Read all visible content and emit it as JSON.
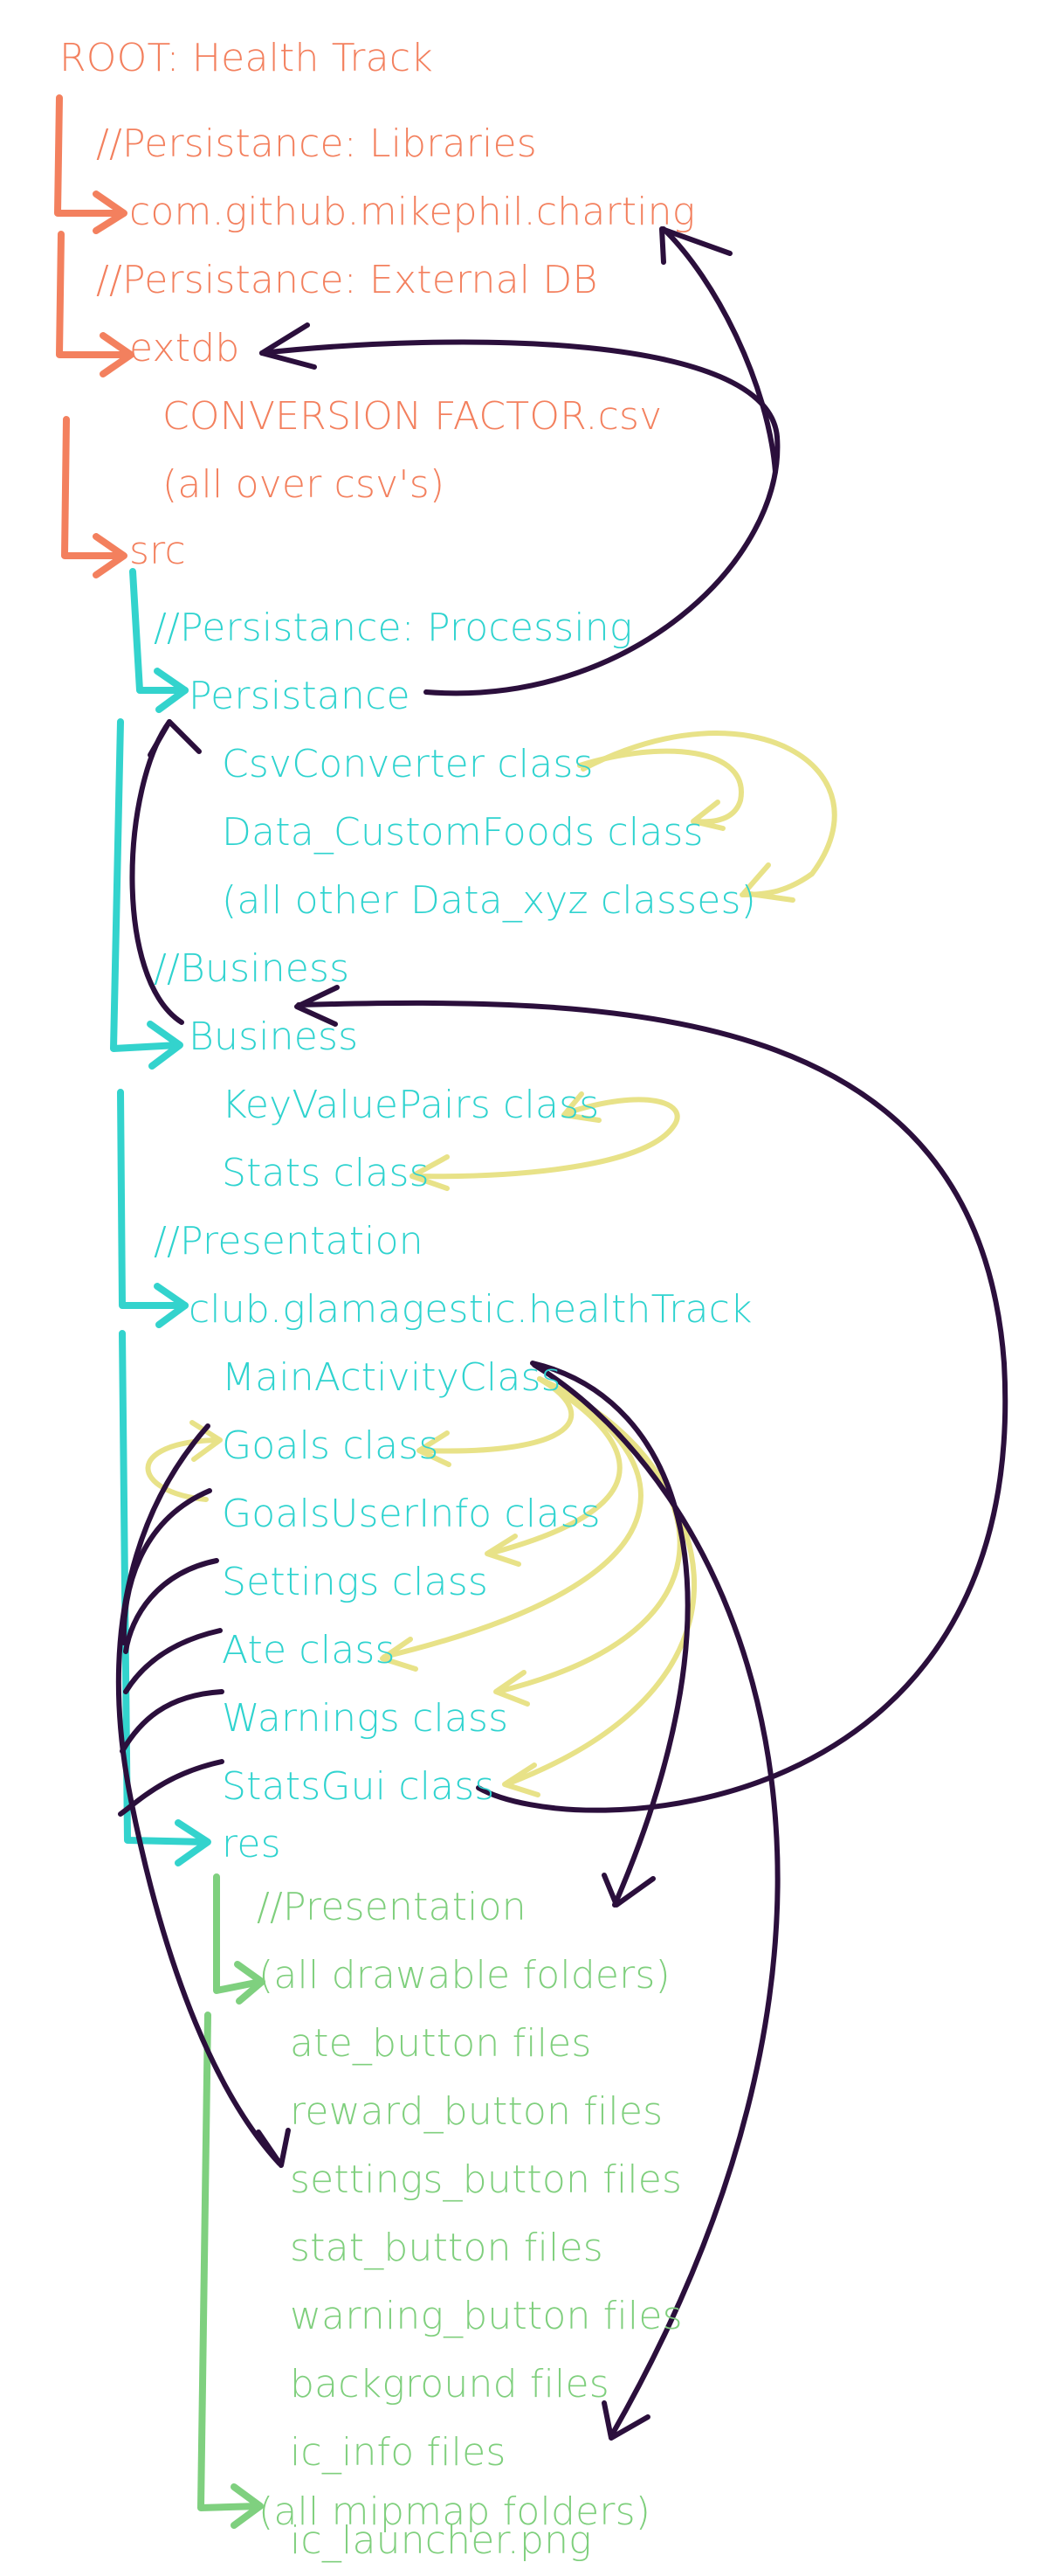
{
  "diagram": {
    "root": "ROOT: Health Track",
    "nodes": {
      "comment_libraries": "//Persistance: Libraries",
      "mikephil": "com.github.mikephil.charting",
      "comment_external_db": "//Persistance: External DB",
      "extdb": "extdb",
      "conversion_factor": "CONVERSION FACTOR.csv",
      "all_csvs": "(all over csv's)",
      "src": "src",
      "comment_processing": "//Persistance: Processing",
      "persistance": "Persistance",
      "csv_converter": "CsvConverter class",
      "data_custom_foods": "Data_CustomFoods class",
      "other_data": "(all other Data_xyz classes)",
      "comment_business": "//Business",
      "business": "Business",
      "key_value_pairs": "KeyValuePairs class",
      "stats_class": "Stats class",
      "comment_presentation": "//Presentation",
      "health_track_pkg": "club.glamagestic.healthTrack",
      "main_activity": "MainActivityClass",
      "goals": "Goals class",
      "goals_user_info": "GoalsUserInfo class",
      "settings": "Settings class",
      "ate": "Ate class",
      "warnings": "Warnings class",
      "stats_gui": "StatsGui class",
      "res": "res",
      "comment_presentation_res": "//Presentation",
      "drawable_folders": "(all drawable folders)",
      "ate_button": "ate_button files",
      "reward_button": "reward_button files",
      "settings_button": "settings_button files",
      "stat_button": "stat_button files",
      "warning_button": "warning_button files",
      "background": "background files",
      "ic_info": "ic_info files",
      "mipmap_folders": "(all mipmap folders)",
      "ic_launcher": "ic_launcher.png"
    },
    "colors": {
      "root_level": "#f3805e",
      "src_level": "#2fd3cf",
      "res_level": "#7fcf7d",
      "dependency_arrows": "#2b0f3c",
      "internal_arrows": "#e8e288"
    }
  }
}
